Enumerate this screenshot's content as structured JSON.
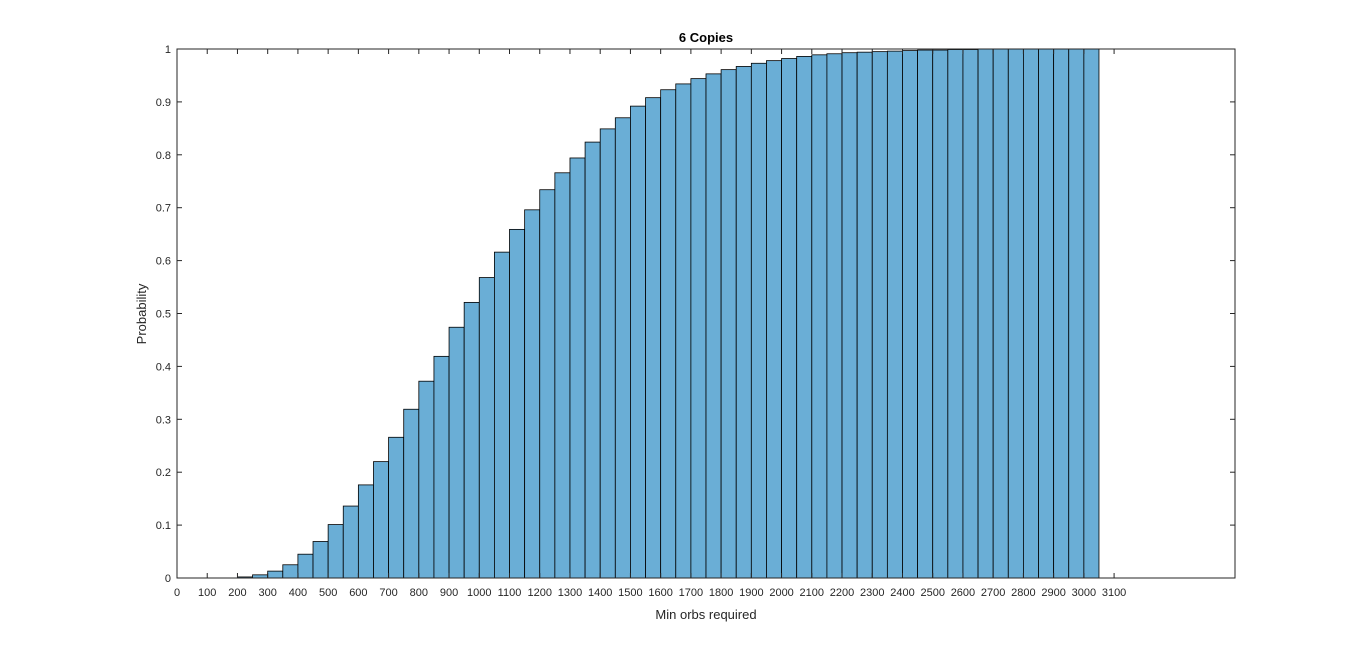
{
  "chart_data": {
    "type": "bar",
    "title": "6 Copies",
    "xlabel": "Min orbs required",
    "ylabel": "Probability",
    "xlim": [
      0,
      3500
    ],
    "ylim": [
      0,
      1
    ],
    "xticks": [
      0,
      100,
      200,
      300,
      400,
      500,
      600,
      700,
      800,
      900,
      1000,
      1100,
      1200,
      1300,
      1400,
      1500,
      1600,
      1700,
      1800,
      1900,
      2000,
      2100,
      2200,
      2300,
      2400,
      2500,
      2600,
      2700,
      2800,
      2900,
      3000,
      3100
    ],
    "yticks": [
      0,
      0.1,
      0.2,
      0.3,
      0.4,
      0.5,
      0.6,
      0.7,
      0.8,
      0.9,
      1
    ],
    "ytick_labels": [
      "0",
      "0.1",
      "0.2",
      "0.3",
      "0.4",
      "0.5",
      "0.6",
      "0.7",
      "0.8",
      "0.9",
      "1"
    ],
    "bin_width": 50,
    "bar_color": "#6aaed6",
    "edge_color": "#000000",
    "grid": false,
    "bins_start": [
      200,
      250,
      300,
      350,
      400,
      450,
      500,
      550,
      600,
      650,
      700,
      750,
      800,
      850,
      900,
      950,
      1000,
      1050,
      1100,
      1150,
      1200,
      1250,
      1300,
      1350,
      1400,
      1450,
      1500,
      1550,
      1600,
      1650,
      1700,
      1750,
      1800,
      1850,
      1900,
      1950,
      2000,
      2050,
      2100,
      2150,
      2200,
      2250,
      2300,
      2350,
      2400,
      2450,
      2500,
      2550,
      2600,
      2650,
      2700,
      2750,
      2800,
      2850,
      2900,
      2950,
      3000
    ],
    "values": [
      0.002,
      0.006,
      0.013,
      0.025,
      0.045,
      0.069,
      0.101,
      0.136,
      0.176,
      0.22,
      0.266,
      0.319,
      0.372,
      0.419,
      0.474,
      0.521,
      0.568,
      0.616,
      0.659,
      0.696,
      0.734,
      0.766,
      0.794,
      0.824,
      0.849,
      0.87,
      0.892,
      0.908,
      0.923,
      0.934,
      0.944,
      0.953,
      0.961,
      0.967,
      0.973,
      0.978,
      0.982,
      0.986,
      0.989,
      0.991,
      0.993,
      0.994,
      0.995,
      0.996,
      0.997,
      0.998,
      0.998,
      0.999,
      0.999,
      1.0,
      1.0,
      1.0,
      1.0,
      1.0,
      1.0,
      1.0,
      1.0
    ]
  }
}
